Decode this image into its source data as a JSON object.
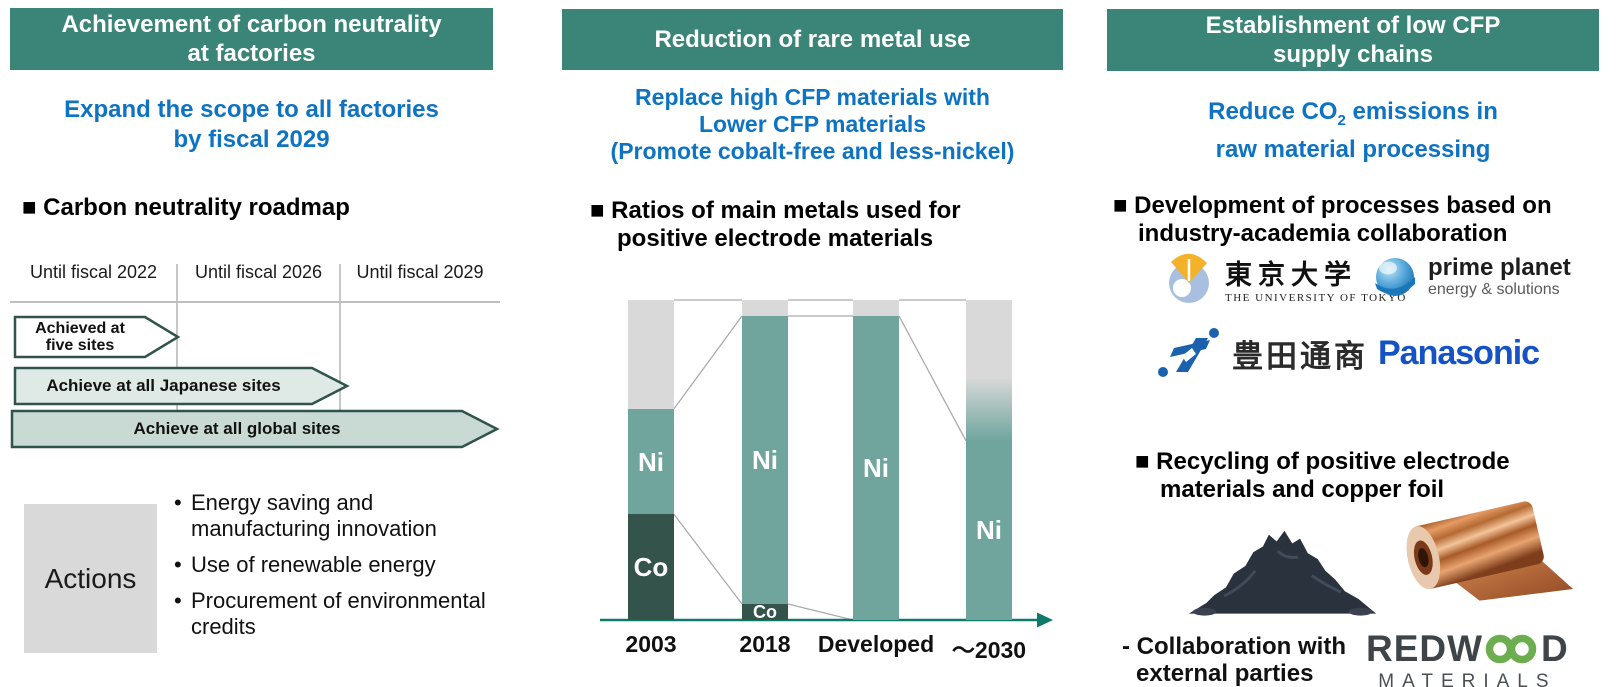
{
  "colors": {
    "header_bg": "#3A8577",
    "subtitle_blue": "#0D73C2",
    "axis_teal": "#0F7A6C",
    "arrow_border": "#30544B",
    "milestone_fill_1": "#FFFFFF",
    "milestone_fill_2": "#DFEAE7",
    "milestone_fill_3": "#C9DAD5",
    "actions_bg": "#D9D9D9",
    "panasonic_blue": "#1552C5",
    "redwood_green": "#6CAE4F",
    "toyota_blue": "#1B62AE"
  },
  "left": {
    "header_line1": "Achievement of carbon neutrality",
    "header_line2": "at factories",
    "subtitle_line1": "Expand the scope to all factories",
    "subtitle_line2": "by fiscal 2029",
    "section_title": "■ Carbon neutrality roadmap",
    "roadmap": {
      "periods": [
        "Until fiscal 2022",
        "Until fiscal 2026",
        "Until fiscal 2029"
      ],
      "milestones": [
        {
          "label_line1": "Achieved at",
          "label_line2": "five sites"
        },
        {
          "label_line1": "Achieve at all Japanese sites"
        },
        {
          "label_line1": "Achieve at all global sites"
        }
      ]
    },
    "actions": {
      "label": "Actions",
      "items": [
        "Energy saving and manufacturing innovation",
        "Use of renewable energy",
        "Procurement of environmental credits"
      ]
    }
  },
  "middle": {
    "header": "Reduction of rare metal use",
    "subtitle_line1": "Replace high CFP materials with",
    "subtitle_line2": "Lower CFP materials",
    "subtitle_line3": "(Promote cobalt-free and less-nickel)",
    "section_title_line1": "■ Ratios of main metals used for",
    "section_title_line2": "positive electrode materials"
  },
  "chart_data": {
    "type": "stacked-bar",
    "title": "Ratios of main metals used for positive electrode materials",
    "xlabel": "",
    "ylabel": "",
    "ylim": [
      0,
      100
    ],
    "unit": "percent (estimated from bar heights)",
    "categories": [
      "2003",
      "2018",
      "Developed",
      "～2030"
    ],
    "series_order": [
      "Co",
      "Ni",
      "Other"
    ],
    "colors": {
      "Co": "#33534B",
      "Ni": "#6FA59D",
      "Other": "#D9D9D9"
    },
    "bars": [
      {
        "category": "2003",
        "segments": [
          {
            "name": "Co",
            "value": 33,
            "label": "Co"
          },
          {
            "name": "Ni",
            "value": 33,
            "label": "Ni"
          },
          {
            "name": "Other",
            "value": 34
          }
        ]
      },
      {
        "category": "2018",
        "segments": [
          {
            "name": "Co",
            "value": 5,
            "label": "Co"
          },
          {
            "name": "Ni",
            "value": 90,
            "label": "Ni"
          },
          {
            "name": "Other",
            "value": 5
          }
        ]
      },
      {
        "category": "Developed",
        "segments": [
          {
            "name": "Ni",
            "value": 95,
            "label": "Ni"
          },
          {
            "name": "Other",
            "value": 5
          }
        ]
      },
      {
        "category": "～2030",
        "segments": [
          {
            "name": "Ni",
            "value": 56,
            "label": "Ni"
          },
          {
            "name": "Other",
            "value": 44,
            "fade_to": "Ni"
          }
        ]
      }
    ],
    "annotations": "Thin gray connector lines link segment boundaries of adjacent bars; teal x-axis arrow at bottom"
  },
  "right": {
    "header_line1": "Establishment of low CFP",
    "header_line2": "supply chains",
    "subtitle_pre": "Reduce CO",
    "subtitle_sub": "2",
    "subtitle_post": " emissions in",
    "subtitle_line2": "raw material processing",
    "section1_line1": "■ Development of processes based on",
    "section1_line2": "industry-academia collaboration",
    "partners": {
      "utokyo_jp": "東京大学",
      "utokyo_en": "THE UNIVERSITY OF TOKYO",
      "primeplanet_name": "prime planet",
      "primeplanet_tagline": "energy & solutions",
      "toyotatsusho_jp": "豊田通商",
      "panasonic": "Panasonic"
    },
    "section2_line1": "■ Recycling of positive electrode",
    "section2_line2": "materials and copper foil",
    "note_line1": "- Collaboration with",
    "note_line2": "external parties",
    "redwood_part1": "REDW",
    "redwood_part2": "D",
    "redwood_materials": "MATERIALS"
  }
}
